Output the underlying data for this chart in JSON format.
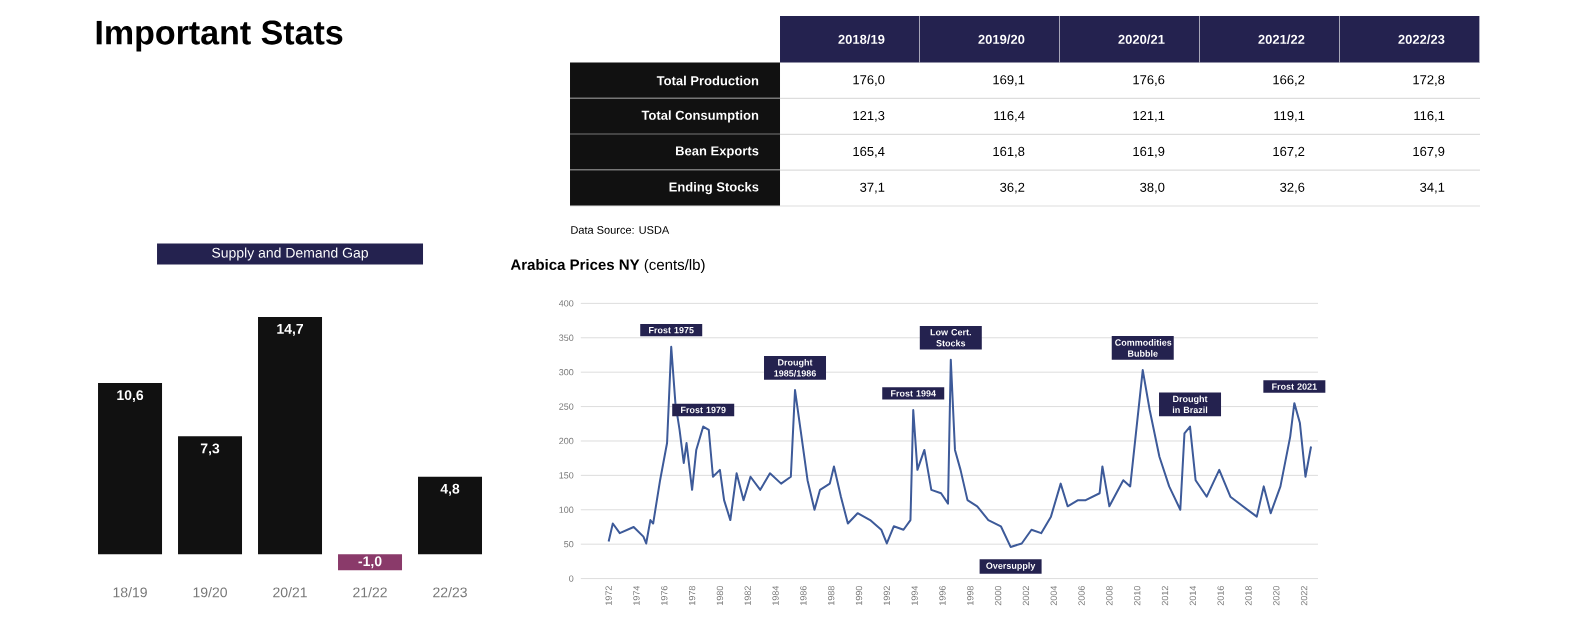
{
  "chart_data": [
    {
      "type": "bar",
      "title": "Important Stats",
      "subtitle": "Supply and Demand Gap",
      "categories": [
        "18/19",
        "19/20",
        "20/21",
        "21/22",
        "22/23"
      ],
      "values": [
        10.6,
        7.3,
        14.7,
        -1.0,
        4.8
      ],
      "colors": [
        "#111111",
        "#111111",
        "#111111",
        "#8a3a6a",
        "#111111"
      ],
      "value_labels": [
        "10,6",
        "7,3",
        "14,7",
        "-1,0",
        "4,8"
      ]
    },
    {
      "type": "other",
      "categories": [
        "2018/19",
        "2019/20",
        "2020/21",
        "2021/22",
        "2022/23"
      ],
      "y_categories": [
        "Total Production",
        "Total Consumption",
        "Bean Exports",
        "Ending Stocks"
      ],
      "cell_labels": [
        [
          "176,0",
          "169,1",
          "176,6",
          "166,2",
          "172,8"
        ],
        [
          "121,3",
          "116,4",
          "121,1",
          "119,1",
          "116,1"
        ],
        [
          "165,4",
          "161,8",
          "161,9",
          "167,2",
          "167,9"
        ],
        [
          "37,1",
          "36,2",
          "38,0",
          "32,6",
          "34,1"
        ]
      ],
      "annotations": [
        "Data Source: USDA"
      ]
    },
    {
      "type": "line",
      "title": "**Arabica Prices NY** (cents/lb)",
      "color": "#3d5a99",
      "grid": "y",
      "xlim": [
        1970,
        2023
      ],
      "ylim": [
        0,
        400
      ],
      "xticks": [
        1972,
        1974,
        1976,
        1978,
        1980,
        1982,
        1984,
        1986,
        1988,
        1990,
        1992,
        1994,
        1996,
        1998,
        2000,
        2002,
        2004,
        2006,
        2008,
        2010,
        2012,
        2014,
        2016,
        2018,
        2020,
        2022
      ],
      "yticks": [
        0,
        50,
        100,
        150,
        200,
        250,
        300,
        350,
        400
      ],
      "x": [
        1972.0,
        1972.3,
        1972.8,
        1973.8,
        1974.5,
        1974.7,
        1975.0,
        1975.2,
        1975.7,
        1976.2,
        1976.5,
        1976.8,
        1977.1,
        1977.4,
        1977.6,
        1978.0,
        1978.3,
        1978.8,
        1979.2,
        1979.5,
        1980.0,
        1980.3,
        1980.75,
        1981.2,
        1981.7,
        1982.2,
        1982.9,
        1983.6,
        1984.4,
        1985.1,
        1985.4,
        1985.8,
        1986.3,
        1986.8,
        1987.2,
        1987.9,
        1988.2,
        1988.7,
        1989.2,
        1989.9,
        1990.8,
        1991.6,
        1992.0,
        1992.5,
        1993.2,
        1993.7,
        1993.9,
        1994.2,
        1994.7,
        1995.2,
        1995.9,
        1996.4,
        1996.6,
        1996.9,
        1997.3,
        1997.8,
        1998.5,
        1999.3,
        2000.2,
        2000.9,
        2001.7,
        2002.4,
        2003.1,
        2003.8,
        2004.5,
        2005.0,
        2005.75,
        2006.3,
        2007.3,
        2007.5,
        2008.0,
        2009.0,
        2009.5,
        2010.4,
        2010.9,
        2011.6,
        2012.3,
        2013.1,
        2013.4,
        2013.8,
        2014.2,
        2015.0,
        2015.9,
        2016.7,
        2017.6,
        2018.6,
        2019.1,
        2019.6,
        2020.3,
        2021.0,
        2021.3,
        2021.7,
        2022.1,
        2022.5
      ],
      "values": [
        54,
        80,
        66,
        75,
        61,
        51,
        85,
        80,
        143,
        197,
        337,
        255,
        216,
        168,
        197,
        129,
        187,
        221,
        216,
        148,
        158,
        114,
        85,
        153,
        114,
        148,
        129,
        153,
        138,
        148,
        274,
        216,
        143,
        100,
        129,
        138,
        163,
        119,
        80,
        95,
        85,
        71,
        51,
        76,
        71,
        85,
        245,
        158,
        187,
        129,
        124,
        109,
        318,
        187,
        158,
        114,
        105,
        85,
        76,
        46,
        51,
        71,
        66,
        90,
        138,
        105,
        114,
        114,
        124,
        163,
        105,
        143,
        134,
        303,
        245,
        177,
        134,
        100,
        211,
        221,
        143,
        119,
        158,
        119,
        105,
        90,
        134,
        95,
        134,
        206,
        255,
        226,
        148,
        192
      ],
      "annotations": [
        {
          "text": "Frost 1975",
          "x": 1976.5,
          "y": 337
        },
        {
          "text": "Frost 1979",
          "x": 1978.8,
          "y": 221
        },
        {
          "text": "Drought 1985/1986",
          "x": 1985.4,
          "y": 274
        },
        {
          "text": "Frost 1994",
          "x": 1993.9,
          "y": 245
        },
        {
          "text": "Low Cert. Stocks",
          "x": 1996.6,
          "y": 318
        },
        {
          "text": "Oversupply",
          "x": 2000.9,
          "y": 46
        },
        {
          "text": "Commodities Bubble",
          "x": 2010.4,
          "y": 303
        },
        {
          "text": "Drought in Brazil",
          "x": 2013.8,
          "y": 221
        },
        {
          "text": "Frost 2021",
          "x": 2021.3,
          "y": 255
        }
      ]
    }
  ]
}
